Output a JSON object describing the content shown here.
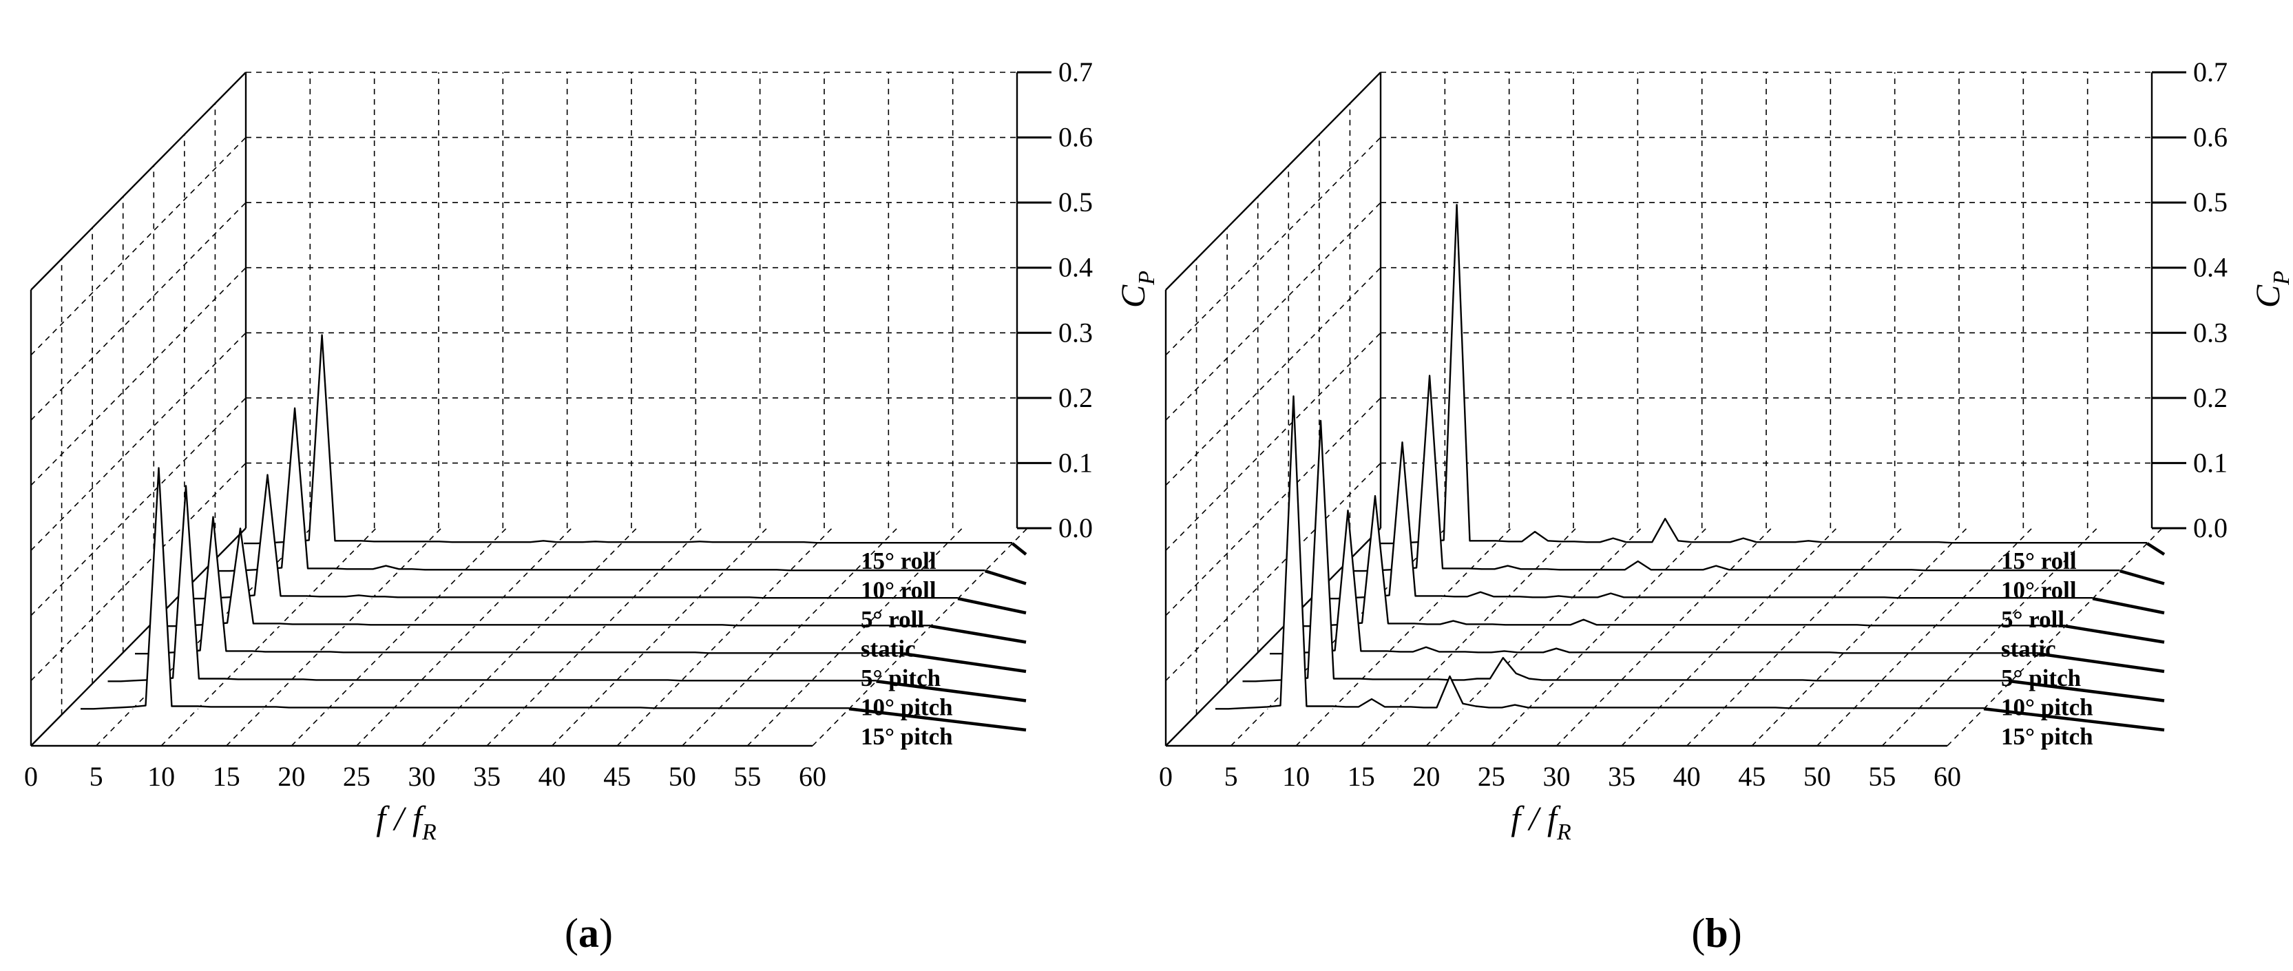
{
  "chart_data": [
    {
      "type": "line",
      "subtype": "3d-waterfall",
      "panel_label": "(a)",
      "xlabel": "f / f_R",
      "ylabel": "C_P",
      "x_ticks": [
        "0",
        "5",
        "10",
        "15",
        "20",
        "25",
        "30",
        "35",
        "40",
        "45",
        "50",
        "55",
        "60"
      ],
      "y_ticks": [
        "0.0",
        "0.1",
        "0.2",
        "0.3",
        "0.4",
        "0.5",
        "0.6",
        "0.7"
      ],
      "xlim": [
        0,
        60
      ],
      "ylim": [
        0,
        0.7
      ],
      "grid": true,
      "x": [
        1,
        2,
        3,
        4,
        5,
        6,
        7,
        8,
        9,
        10,
        11,
        12,
        13,
        14,
        15,
        16,
        17,
        18,
        19,
        20,
        21,
        22,
        23,
        24,
        25,
        26,
        27,
        28,
        29,
        30,
        31,
        32,
        33,
        34,
        35,
        36,
        37,
        38,
        39,
        40,
        41,
        42,
        43,
        44,
        45,
        46,
        47,
        48,
        49,
        50,
        51,
        52,
        53,
        54,
        55,
        56,
        57,
        58,
        59,
        60
      ],
      "series": [
        {
          "name": "15° roll",
          "values": [
            0,
            0,
            0.001,
            0.002,
            0.003,
            0.005,
            0.32,
            0.004,
            0.004,
            0.004,
            0.003,
            0.003,
            0.003,
            0.003,
            0.003,
            0.003,
            0.002,
            0.002,
            0.002,
            0.002,
            0.002,
            0.002,
            0.002,
            0.004,
            0.002,
            0.002,
            0.002,
            0.003,
            0.002,
            0.002,
            0.002,
            0.002,
            0.002,
            0.002,
            0.002,
            0.003,
            0.002,
            0.002,
            0.002,
            0.002,
            0.002,
            0.002,
            0.002,
            0.002,
            0.001,
            0.001,
            0.001,
            0.001,
            0.001,
            0.001,
            0.001,
            0.001,
            0.001,
            0.001,
            0.001,
            0.001,
            0.001,
            0.001,
            0.001,
            0.001
          ]
        },
        {
          "name": "10° roll",
          "values": [
            0,
            0,
            0.001,
            0.002,
            0.003,
            0.005,
            0.25,
            0.004,
            0.004,
            0.004,
            0.003,
            0.003,
            0.003,
            0.008,
            0.003,
            0.003,
            0.002,
            0.002,
            0.002,
            0.002,
            0.002,
            0.002,
            0.002,
            0.002,
            0.002,
            0.002,
            0.002,
            0.002,
            0.002,
            0.002,
            0.002,
            0.002,
            0.002,
            0.002,
            0.002,
            0.002,
            0.002,
            0.002,
            0.002,
            0.002,
            0.002,
            0.002,
            0.002,
            0.002,
            0.001,
            0.001,
            0.001,
            0.001,
            0.001,
            0.001,
            0.001,
            0.001,
            0.001,
            0.001,
            0.001,
            0.001,
            0.001,
            0.001,
            0.001,
            0.001
          ]
        },
        {
          "name": "5° roll",
          "values": [
            0,
            0,
            0.001,
            0.002,
            0.003,
            0.005,
            0.19,
            0.004,
            0.004,
            0.004,
            0.003,
            0.003,
            0.003,
            0.005,
            0.003,
            0.003,
            0.002,
            0.002,
            0.002,
            0.002,
            0.002,
            0.002,
            0.002,
            0.002,
            0.002,
            0.002,
            0.002,
            0.002,
            0.002,
            0.002,
            0.002,
            0.002,
            0.002,
            0.002,
            0.002,
            0.002,
            0.002,
            0.002,
            0.002,
            0.002,
            0.002,
            0.002,
            0.002,
            0.002,
            0.001,
            0.001,
            0.001,
            0.001,
            0.001,
            0.001,
            0.001,
            0.001,
            0.001,
            0.001,
            0.001,
            0.001,
            0.001,
            0.001,
            0.001,
            0.001
          ]
        },
        {
          "name": "static",
          "values": [
            0,
            0,
            0.001,
            0.002,
            0.003,
            0.005,
            0.15,
            0.004,
            0.004,
            0.004,
            0.003,
            0.003,
            0.003,
            0.003,
            0.003,
            0.003,
            0.002,
            0.002,
            0.002,
            0.002,
            0.002,
            0.002,
            0.002,
            0.002,
            0.002,
            0.002,
            0.002,
            0.002,
            0.002,
            0.002,
            0.002,
            0.002,
            0.002,
            0.002,
            0.002,
            0.002,
            0.002,
            0.002,
            0.002,
            0.002,
            0.002,
            0.002,
            0.002,
            0.002,
            0.001,
            0.001,
            0.001,
            0.001,
            0.001,
            0.001,
            0.001,
            0.001,
            0.001,
            0.001,
            0.001,
            0.001,
            0.001,
            0.001,
            0.001,
            0.001
          ]
        },
        {
          "name": "5° pitch",
          "values": [
            0,
            0,
            0.001,
            0.002,
            0.003,
            0.005,
            0.21,
            0.004,
            0.004,
            0.004,
            0.003,
            0.003,
            0.003,
            0.003,
            0.003,
            0.003,
            0.002,
            0.002,
            0.002,
            0.002,
            0.002,
            0.002,
            0.002,
            0.002,
            0.002,
            0.002,
            0.002,
            0.002,
            0.002,
            0.002,
            0.002,
            0.002,
            0.002,
            0.002,
            0.002,
            0.002,
            0.002,
            0.002,
            0.002,
            0.002,
            0.002,
            0.002,
            0.002,
            0.002,
            0.001,
            0.001,
            0.001,
            0.001,
            0.001,
            0.001,
            0.001,
            0.001,
            0.001,
            0.001,
            0.001,
            0.001,
            0.001,
            0.001,
            0.001,
            0.001
          ]
        },
        {
          "name": "10° pitch",
          "values": [
            0,
            0,
            0.001,
            0.002,
            0.003,
            0.005,
            0.3,
            0.004,
            0.004,
            0.004,
            0.003,
            0.003,
            0.003,
            0.003,
            0.003,
            0.003,
            0.002,
            0.002,
            0.002,
            0.002,
            0.002,
            0.002,
            0.002,
            0.002,
            0.002,
            0.002,
            0.002,
            0.002,
            0.002,
            0.002,
            0.002,
            0.002,
            0.002,
            0.002,
            0.002,
            0.002,
            0.002,
            0.002,
            0.002,
            0.002,
            0.002,
            0.002,
            0.002,
            0.002,
            0.001,
            0.001,
            0.001,
            0.001,
            0.001,
            0.001,
            0.001,
            0.001,
            0.001,
            0.001,
            0.001,
            0.001,
            0.001,
            0.001,
            0.001,
            0.001
          ]
        },
        {
          "name": "15° pitch",
          "values": [
            0,
            0,
            0.001,
            0.002,
            0.003,
            0.005,
            0.37,
            0.004,
            0.004,
            0.004,
            0.003,
            0.003,
            0.003,
            0.003,
            0.003,
            0.003,
            0.002,
            0.002,
            0.002,
            0.002,
            0.002,
            0.002,
            0.002,
            0.002,
            0.002,
            0.002,
            0.002,
            0.002,
            0.002,
            0.002,
            0.002,
            0.002,
            0.002,
            0.002,
            0.002,
            0.002,
            0.002,
            0.002,
            0.002,
            0.002,
            0.002,
            0.002,
            0.002,
            0.002,
            0.001,
            0.001,
            0.001,
            0.001,
            0.001,
            0.001,
            0.001,
            0.001,
            0.001,
            0.001,
            0.001,
            0.001,
            0.001,
            0.001,
            0.001,
            0.001
          ]
        }
      ]
    },
    {
      "type": "line",
      "subtype": "3d-waterfall",
      "panel_label": "(b)",
      "xlabel": "f / f_R",
      "ylabel": "C_P",
      "x_ticks": [
        "0",
        "5",
        "10",
        "15",
        "20",
        "25",
        "30",
        "35",
        "40",
        "45",
        "50",
        "55",
        "60"
      ],
      "y_ticks": [
        "0.0",
        "0.1",
        "0.2",
        "0.3",
        "0.4",
        "0.5",
        "0.6",
        "0.7"
      ],
      "xlim": [
        0,
        60
      ],
      "ylim": [
        0,
        0.7
      ],
      "grid": true,
      "x": [
        1,
        2,
        3,
        4,
        5,
        6,
        7,
        8,
        9,
        10,
        11,
        12,
        13,
        14,
        15,
        16,
        17,
        18,
        19,
        20,
        21,
        22,
        23,
        24,
        25,
        26,
        27,
        28,
        29,
        30,
        31,
        32,
        33,
        34,
        35,
        36,
        37,
        38,
        39,
        40,
        41,
        42,
        43,
        44,
        45,
        46,
        47,
        48,
        49,
        50,
        51,
        52,
        53,
        54,
        55,
        56,
        57,
        58,
        59,
        60
      ],
      "series": [
        {
          "name": "15° roll",
          "values": [
            0,
            0,
            0.001,
            0.002,
            0.003,
            0.005,
            0.52,
            0.004,
            0.004,
            0.004,
            0.003,
            0.003,
            0.018,
            0.004,
            0.003,
            0.003,
            0.002,
            0.002,
            0.008,
            0.002,
            0.002,
            0.002,
            0.038,
            0.004,
            0.002,
            0.002,
            0.002,
            0.002,
            0.008,
            0.002,
            0.002,
            0.002,
            0.002,
            0.004,
            0.002,
            0.002,
            0.002,
            0.002,
            0.002,
            0.002,
            0.002,
            0.002,
            0.002,
            0.002,
            0.001,
            0.001,
            0.001,
            0.001,
            0.001,
            0.001,
            0.001,
            0.001,
            0.001,
            0.001,
            0.001,
            0.001,
            0.001,
            0.001,
            0.001,
            0.001
          ]
        },
        {
          "name": "10° roll",
          "values": [
            0,
            0,
            0.001,
            0.002,
            0.003,
            0.005,
            0.3,
            0.004,
            0.004,
            0.004,
            0.003,
            0.003,
            0.008,
            0.003,
            0.003,
            0.003,
            0.002,
            0.002,
            0.002,
            0.002,
            0.002,
            0.002,
            0.015,
            0.002,
            0.002,
            0.002,
            0.002,
            0.002,
            0.008,
            0.002,
            0.002,
            0.002,
            0.002,
            0.002,
            0.002,
            0.002,
            0.002,
            0.002,
            0.002,
            0.002,
            0.002,
            0.002,
            0.002,
            0.002,
            0.001,
            0.001,
            0.001,
            0.001,
            0.001,
            0.001,
            0.001,
            0.001,
            0.001,
            0.001,
            0.001,
            0.001,
            0.001,
            0.001,
            0.001,
            0.001
          ]
        },
        {
          "name": "5° roll",
          "values": [
            0,
            0,
            0.001,
            0.002,
            0.003,
            0.005,
            0.24,
            0.004,
            0.004,
            0.004,
            0.003,
            0.003,
            0.01,
            0.003,
            0.003,
            0.003,
            0.002,
            0.002,
            0.004,
            0.002,
            0.002,
            0.002,
            0.008,
            0.002,
            0.002,
            0.002,
            0.002,
            0.002,
            0.002,
            0.002,
            0.002,
            0.002,
            0.002,
            0.002,
            0.002,
            0.002,
            0.002,
            0.002,
            0.002,
            0.002,
            0.002,
            0.002,
            0.002,
            0.002,
            0.001,
            0.001,
            0.001,
            0.001,
            0.001,
            0.001,
            0.001,
            0.001,
            0.001,
            0.001,
            0.001,
            0.001,
            0.001,
            0.001,
            0.001,
            0.001
          ]
        },
        {
          "name": "static",
          "values": [
            0,
            0,
            0.001,
            0.002,
            0.003,
            0.005,
            0.2,
            0.004,
            0.004,
            0.004,
            0.003,
            0.003,
            0.008,
            0.003,
            0.003,
            0.003,
            0.002,
            0.002,
            0.002,
            0.002,
            0.002,
            0.002,
            0.01,
            0.002,
            0.002,
            0.002,
            0.002,
            0.002,
            0.002,
            0.002,
            0.002,
            0.002,
            0.002,
            0.002,
            0.002,
            0.002,
            0.002,
            0.002,
            0.002,
            0.002,
            0.002,
            0.002,
            0.002,
            0.002,
            0.001,
            0.001,
            0.001,
            0.001,
            0.001,
            0.001,
            0.001,
            0.001,
            0.001,
            0.001,
            0.001,
            0.001,
            0.001,
            0.001,
            0.001,
            0.001
          ]
        },
        {
          "name": "5° pitch",
          "values": [
            0,
            0,
            0.001,
            0.002,
            0.003,
            0.005,
            0.22,
            0.004,
            0.004,
            0.004,
            0.003,
            0.003,
            0.01,
            0.003,
            0.003,
            0.003,
            0.002,
            0.002,
            0.004,
            0.002,
            0.002,
            0.002,
            0.008,
            0.002,
            0.002,
            0.002,
            0.002,
            0.002,
            0.002,
            0.002,
            0.002,
            0.002,
            0.002,
            0.002,
            0.002,
            0.002,
            0.002,
            0.002,
            0.002,
            0.002,
            0.002,
            0.002,
            0.002,
            0.002,
            0.001,
            0.001,
            0.001,
            0.001,
            0.001,
            0.001,
            0.001,
            0.001,
            0.001,
            0.001,
            0.001,
            0.001,
            0.001,
            0.001,
            0.001,
            0.001
          ]
        },
        {
          "name": "10° pitch",
          "values": [
            0,
            0,
            0.001,
            0.002,
            0.003,
            0.005,
            0.4,
            0.004,
            0.004,
            0.004,
            0.003,
            0.003,
            0.003,
            0.003,
            0.003,
            0.003,
            0.002,
            0.002,
            0.004,
            0.004,
            0.036,
            0.012,
            0.004,
            0.002,
            0.002,
            0.002,
            0.002,
            0.002,
            0.002,
            0.002,
            0.002,
            0.002,
            0.002,
            0.002,
            0.002,
            0.002,
            0.002,
            0.002,
            0.002,
            0.002,
            0.002,
            0.002,
            0.002,
            0.002,
            0.001,
            0.001,
            0.001,
            0.001,
            0.001,
            0.001,
            0.001,
            0.001,
            0.001,
            0.001,
            0.001,
            0.001,
            0.001,
            0.001,
            0.001,
            0.001
          ]
        },
        {
          "name": "15° pitch",
          "values": [
            0,
            0,
            0.001,
            0.002,
            0.003,
            0.005,
            0.48,
            0.004,
            0.004,
            0.004,
            0.003,
            0.003,
            0.015,
            0.003,
            0.003,
            0.003,
            0.002,
            0.002,
            0.05,
            0.008,
            0.004,
            0.002,
            0.002,
            0.006,
            0.002,
            0.002,
            0.002,
            0.002,
            0.002,
            0.002,
            0.002,
            0.002,
            0.002,
            0.002,
            0.002,
            0.002,
            0.002,
            0.002,
            0.002,
            0.002,
            0.002,
            0.002,
            0.002,
            0.002,
            0.001,
            0.001,
            0.001,
            0.001,
            0.001,
            0.001,
            0.001,
            0.001,
            0.001,
            0.001,
            0.001,
            0.001,
            0.001,
            0.001,
            0.001,
            0.001
          ]
        }
      ]
    }
  ]
}
